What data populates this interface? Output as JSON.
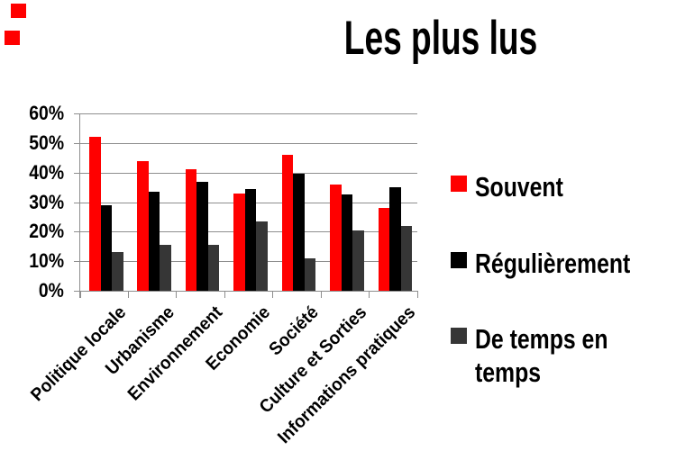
{
  "chart_data": {
    "type": "bar",
    "title": "Les plus lus",
    "categories": [
      "Politique locale",
      "Urbanisme",
      "Environnement",
      "Economie",
      "Société",
      "Culture et Sorties",
      "Informations pratiques"
    ],
    "series": [
      {
        "name": "Souvent",
        "color": "#ff0000",
        "values": [
          52,
          44,
          41,
          33,
          46,
          36,
          28
        ]
      },
      {
        "name": "Régulièrement",
        "color": "#000000",
        "values": [
          29,
          33.5,
          37,
          34.5,
          39.5,
          32.5,
          35
        ]
      },
      {
        "name": "De temps en temps",
        "color": "#363636",
        "values": [
          13,
          15.5,
          15.5,
          23.5,
          11,
          20.5,
          22
        ]
      }
    ],
    "xlabel": "",
    "ylabel": "",
    "ylim": [
      0,
      60
    ],
    "ytick_step": 10,
    "ytick_labels": [
      "0%",
      "10%",
      "20%",
      "30%",
      "40%",
      "50%",
      "60%"
    ],
    "grid": true,
    "legend_position": "right",
    "category_label_rotation_deg": 45
  },
  "colors": {
    "gridline": "#8e8e8e",
    "axis": "#8e8e8e",
    "text": "#000000",
    "background": "#ffffff",
    "corner_decor_squares": "#ff0000"
  }
}
